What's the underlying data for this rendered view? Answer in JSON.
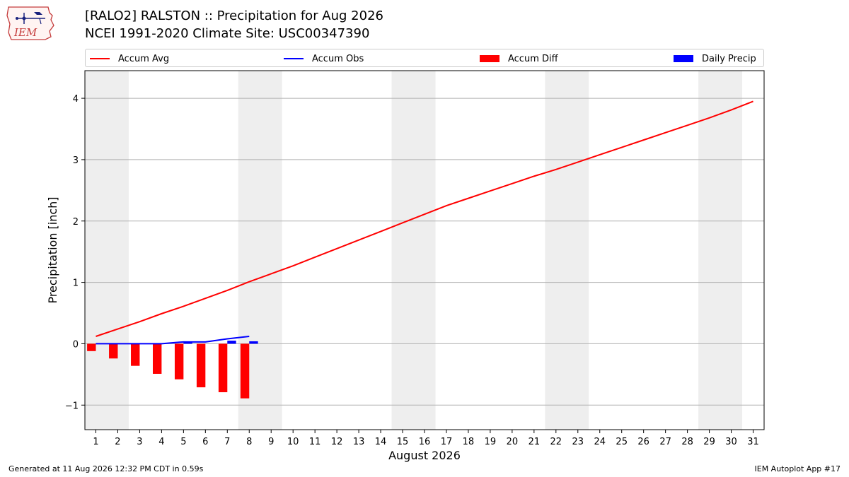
{
  "header": {
    "title_line1": "[RALO2] RALSTON :: Precipitation for Aug 2026",
    "title_line2": "NCEI 1991-2020 Climate Site: USC00347390"
  },
  "logo": {
    "text": "IEM"
  },
  "footer": {
    "left": "Generated at 11 Aug 2026 12:32 PM CDT in 0.59s",
    "right": "IEM Autoplot App #17"
  },
  "colors": {
    "accum_avg": "#ff0000",
    "accum_obs": "#0000ff",
    "accum_diff": "#ff0000",
    "daily_precip": "#0000ff",
    "weekend_band": "#eeeeee",
    "grid": "#b0b0b0"
  },
  "chart_data": {
    "type": "line",
    "title": "[RALO2] RALSTON :: Precipitation for Aug 2026",
    "subtitle": "NCEI 1991-2020 Climate Site: USC00347390",
    "xlabel": "August 2026",
    "ylabel": "Precipitation [inch]",
    "xlim": [
      0.5,
      31.5
    ],
    "ylim": [
      -1.4,
      4.45
    ],
    "yticks": [
      -1,
      0,
      1,
      2,
      3,
      4
    ],
    "ytick_labels": [
      "−1",
      "0",
      "1",
      "2",
      "3",
      "4"
    ],
    "xticks": [
      1,
      2,
      3,
      4,
      5,
      6,
      7,
      8,
      9,
      10,
      11,
      12,
      13,
      14,
      15,
      16,
      17,
      18,
      19,
      20,
      21,
      22,
      23,
      24,
      25,
      26,
      27,
      28,
      29,
      30,
      31
    ],
    "grid": "horizontal",
    "weekend_bands": [
      [
        0.5,
        2.5
      ],
      [
        7.5,
        9.5
      ],
      [
        14.5,
        16.5
      ],
      [
        21.5,
        23.5
      ],
      [
        28.5,
        30.5
      ]
    ],
    "legend": {
      "position": "top",
      "entries": [
        "Accum Avg",
        "Accum Obs",
        "Accum Diff",
        "Daily Precip"
      ]
    },
    "series": [
      {
        "name": "Accum Avg",
        "kind": "line",
        "x": [
          1,
          2,
          3,
          4,
          5,
          6,
          7,
          8,
          9,
          10,
          11,
          12,
          13,
          14,
          15,
          16,
          17,
          18,
          19,
          20,
          21,
          22,
          23,
          24,
          25,
          26,
          27,
          28,
          29,
          30,
          31
        ],
        "values": [
          0.12,
          0.24,
          0.36,
          0.49,
          0.61,
          0.74,
          0.87,
          1.01,
          1.14,
          1.27,
          1.41,
          1.55,
          1.69,
          1.83,
          1.97,
          2.11,
          2.25,
          2.37,
          2.49,
          2.61,
          2.73,
          2.84,
          2.96,
          3.08,
          3.2,
          3.32,
          3.44,
          3.56,
          3.68,
          3.81,
          3.95
        ]
      },
      {
        "name": "Accum Obs",
        "kind": "line",
        "x": [
          1,
          2,
          3,
          4,
          5,
          6,
          7,
          8
        ],
        "values": [
          0,
          0,
          0,
          0,
          0.03,
          0.03,
          0.08,
          0.12
        ]
      },
      {
        "name": "Accum Diff",
        "kind": "bar",
        "x": [
          1,
          2,
          3,
          4,
          5,
          6,
          7,
          8
        ],
        "values": [
          -0.12,
          -0.24,
          -0.36,
          -0.49,
          -0.58,
          -0.71,
          -0.79,
          -0.89
        ]
      },
      {
        "name": "Daily Precip",
        "kind": "bar",
        "x": [
          1,
          2,
          3,
          4,
          5,
          6,
          7,
          8
        ],
        "values": [
          0,
          0,
          0,
          0,
          0.03,
          0,
          0.05,
          0.04
        ]
      }
    ]
  }
}
